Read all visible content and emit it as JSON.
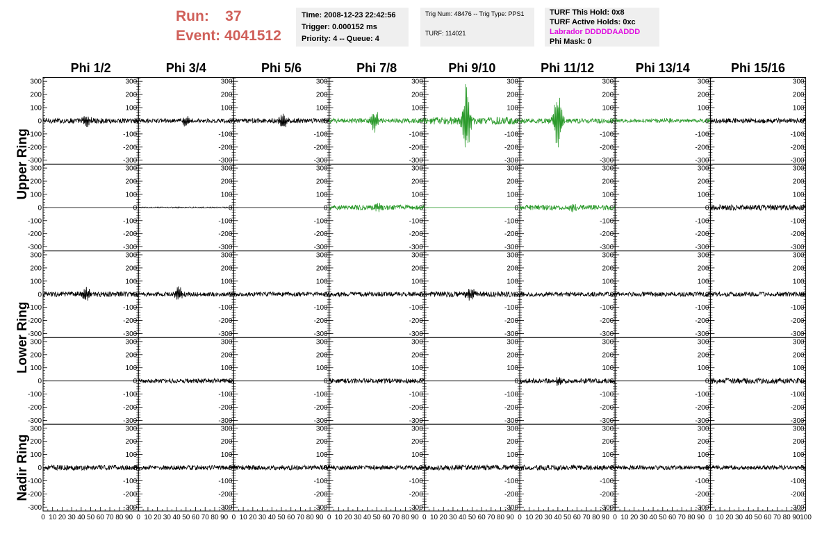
{
  "header": {
    "run_label": "Run:",
    "run_value": "37",
    "event_label": "Event:",
    "event_value": "4041512",
    "colors": {
      "run_text": "#d0605a",
      "box_bg": "#efefef",
      "labrador": "#e010e0"
    }
  },
  "trigger_box": {
    "time": "Time: 2008-12-23 22:42:56",
    "trigger": "Trigger: 0.000152 ms",
    "priority": "Priority: 4 -- Queue: 4"
  },
  "trig_box": {
    "trig_num": "Trig Num: 48476 -- Trig Type: PPS1",
    "turf": "TURF: 114021"
  },
  "turf_box": {
    "this_hold": "TURF This Hold: 0x8",
    "active_holds": "TURF Active Holds: 0xc",
    "labrador": "Labrador DDDDDAADDD",
    "phi_mask": "Phi Mask: 0"
  },
  "chart_data": {
    "type": "line",
    "columns": [
      "Phi 1/2",
      "Phi 3/4",
      "Phi 5/6",
      "Phi 7/8",
      "Phi 9/10",
      "Phi 11/12",
      "Phi 13/14",
      "Phi 15/16"
    ],
    "ring_labels": [
      "Upper Ring",
      "Lower Ring",
      "Nadir Ring"
    ],
    "ylim": [
      -330,
      330
    ],
    "yticks": [
      -300,
      -200,
      -100,
      0,
      100,
      200,
      300
    ],
    "xlim": [
      0,
      100
    ],
    "xticks": [
      0,
      10,
      20,
      30,
      40,
      50,
      60,
      70,
      80,
      90,
      100
    ],
    "colors": {
      "default": "#000000",
      "triggered": "#2b9a2b"
    },
    "rows": [
      [
        {
          "amp": 14,
          "burst": [
            46,
            55
          ],
          "color": "default"
        },
        {
          "amp": 11,
          "burst": [
            50,
            45
          ],
          "color": "default"
        },
        {
          "amp": 13,
          "burst": [
            52,
            55
          ],
          "color": "default"
        },
        {
          "amp": 13,
          "burst": [
            48,
            85
          ],
          "color": "triggered"
        },
        {
          "amp": 20,
          "burst": [
            44,
            300
          ],
          "color": "triggered"
        },
        {
          "amp": 13,
          "burst": [
            40,
            270
          ],
          "color": "triggered"
        },
        {
          "amp": 10,
          "burst": [
            55,
            20
          ],
          "color": "triggered"
        },
        {
          "amp": 13,
          "burst": [
            0,
            0
          ],
          "color": "default"
        }
      ],
      [
        {
          "amp": 0,
          "burst": [
            0,
            0
          ],
          "color": "default"
        },
        {
          "amp": 3,
          "burst": [
            0,
            0
          ],
          "color": "default"
        },
        {
          "amp": 0,
          "burst": [
            0,
            0
          ],
          "color": "default"
        },
        {
          "amp": 14,
          "burst": [
            50,
            40
          ],
          "color": "triggered"
        },
        {
          "amp": 0,
          "burst": [
            0,
            0
          ],
          "color": "triggered"
        },
        {
          "amp": 14,
          "burst": [
            55,
            30
          ],
          "color": "triggered"
        },
        {
          "amp": 0,
          "burst": [
            0,
            0
          ],
          "color": "default"
        },
        {
          "amp": 15,
          "burst": [
            0,
            0
          ],
          "color": "default"
        }
      ],
      [
        {
          "amp": 14,
          "burst": [
            45,
            65
          ],
          "color": "default"
        },
        {
          "amp": 12,
          "burst": [
            42,
            60
          ],
          "color": "default"
        },
        {
          "amp": 12,
          "burst": [
            0,
            0
          ],
          "color": "default"
        },
        {
          "amp": 12,
          "burst": [
            0,
            0
          ],
          "color": "default"
        },
        {
          "amp": 15,
          "burst": [
            48,
            70
          ],
          "color": "default"
        },
        {
          "amp": 12,
          "burst": [
            0,
            0
          ],
          "color": "default"
        },
        {
          "amp": 12,
          "burst": [
            0,
            0
          ],
          "color": "default"
        },
        {
          "amp": 12,
          "burst": [
            0,
            0
          ],
          "color": "default"
        }
      ],
      [
        {
          "amp": 0,
          "burst": [
            0,
            0
          ],
          "color": "default"
        },
        {
          "amp": 12,
          "burst": [
            0,
            0
          ],
          "color": "default"
        },
        {
          "amp": 0,
          "burst": [
            0,
            0
          ],
          "color": "default"
        },
        {
          "amp": 13,
          "burst": [
            0,
            0
          ],
          "color": "default"
        },
        {
          "amp": 0,
          "burst": [
            0,
            0
          ],
          "color": "default"
        },
        {
          "amp": 13,
          "burst": [
            42,
            40
          ],
          "color": "default"
        },
        {
          "amp": 0,
          "burst": [
            0,
            0
          ],
          "color": "default"
        },
        {
          "amp": 15,
          "burst": [
            0,
            0
          ],
          "color": "default"
        }
      ],
      [
        {
          "amp": 14,
          "burst": [
            0,
            0
          ],
          "color": "default"
        },
        {
          "amp": 12,
          "burst": [
            0,
            0
          ],
          "color": "default"
        },
        {
          "amp": 13,
          "burst": [
            0,
            0
          ],
          "color": "default"
        },
        {
          "amp": 12,
          "burst": [
            0,
            0
          ],
          "color": "default"
        },
        {
          "amp": 14,
          "burst": [
            0,
            0
          ],
          "color": "default"
        },
        {
          "amp": 14,
          "burst": [
            0,
            0
          ],
          "color": "default"
        },
        {
          "amp": 12,
          "burst": [
            0,
            0
          ],
          "color": "default"
        },
        {
          "amp": 12,
          "burst": [
            0,
            0
          ],
          "color": "default"
        }
      ]
    ]
  }
}
